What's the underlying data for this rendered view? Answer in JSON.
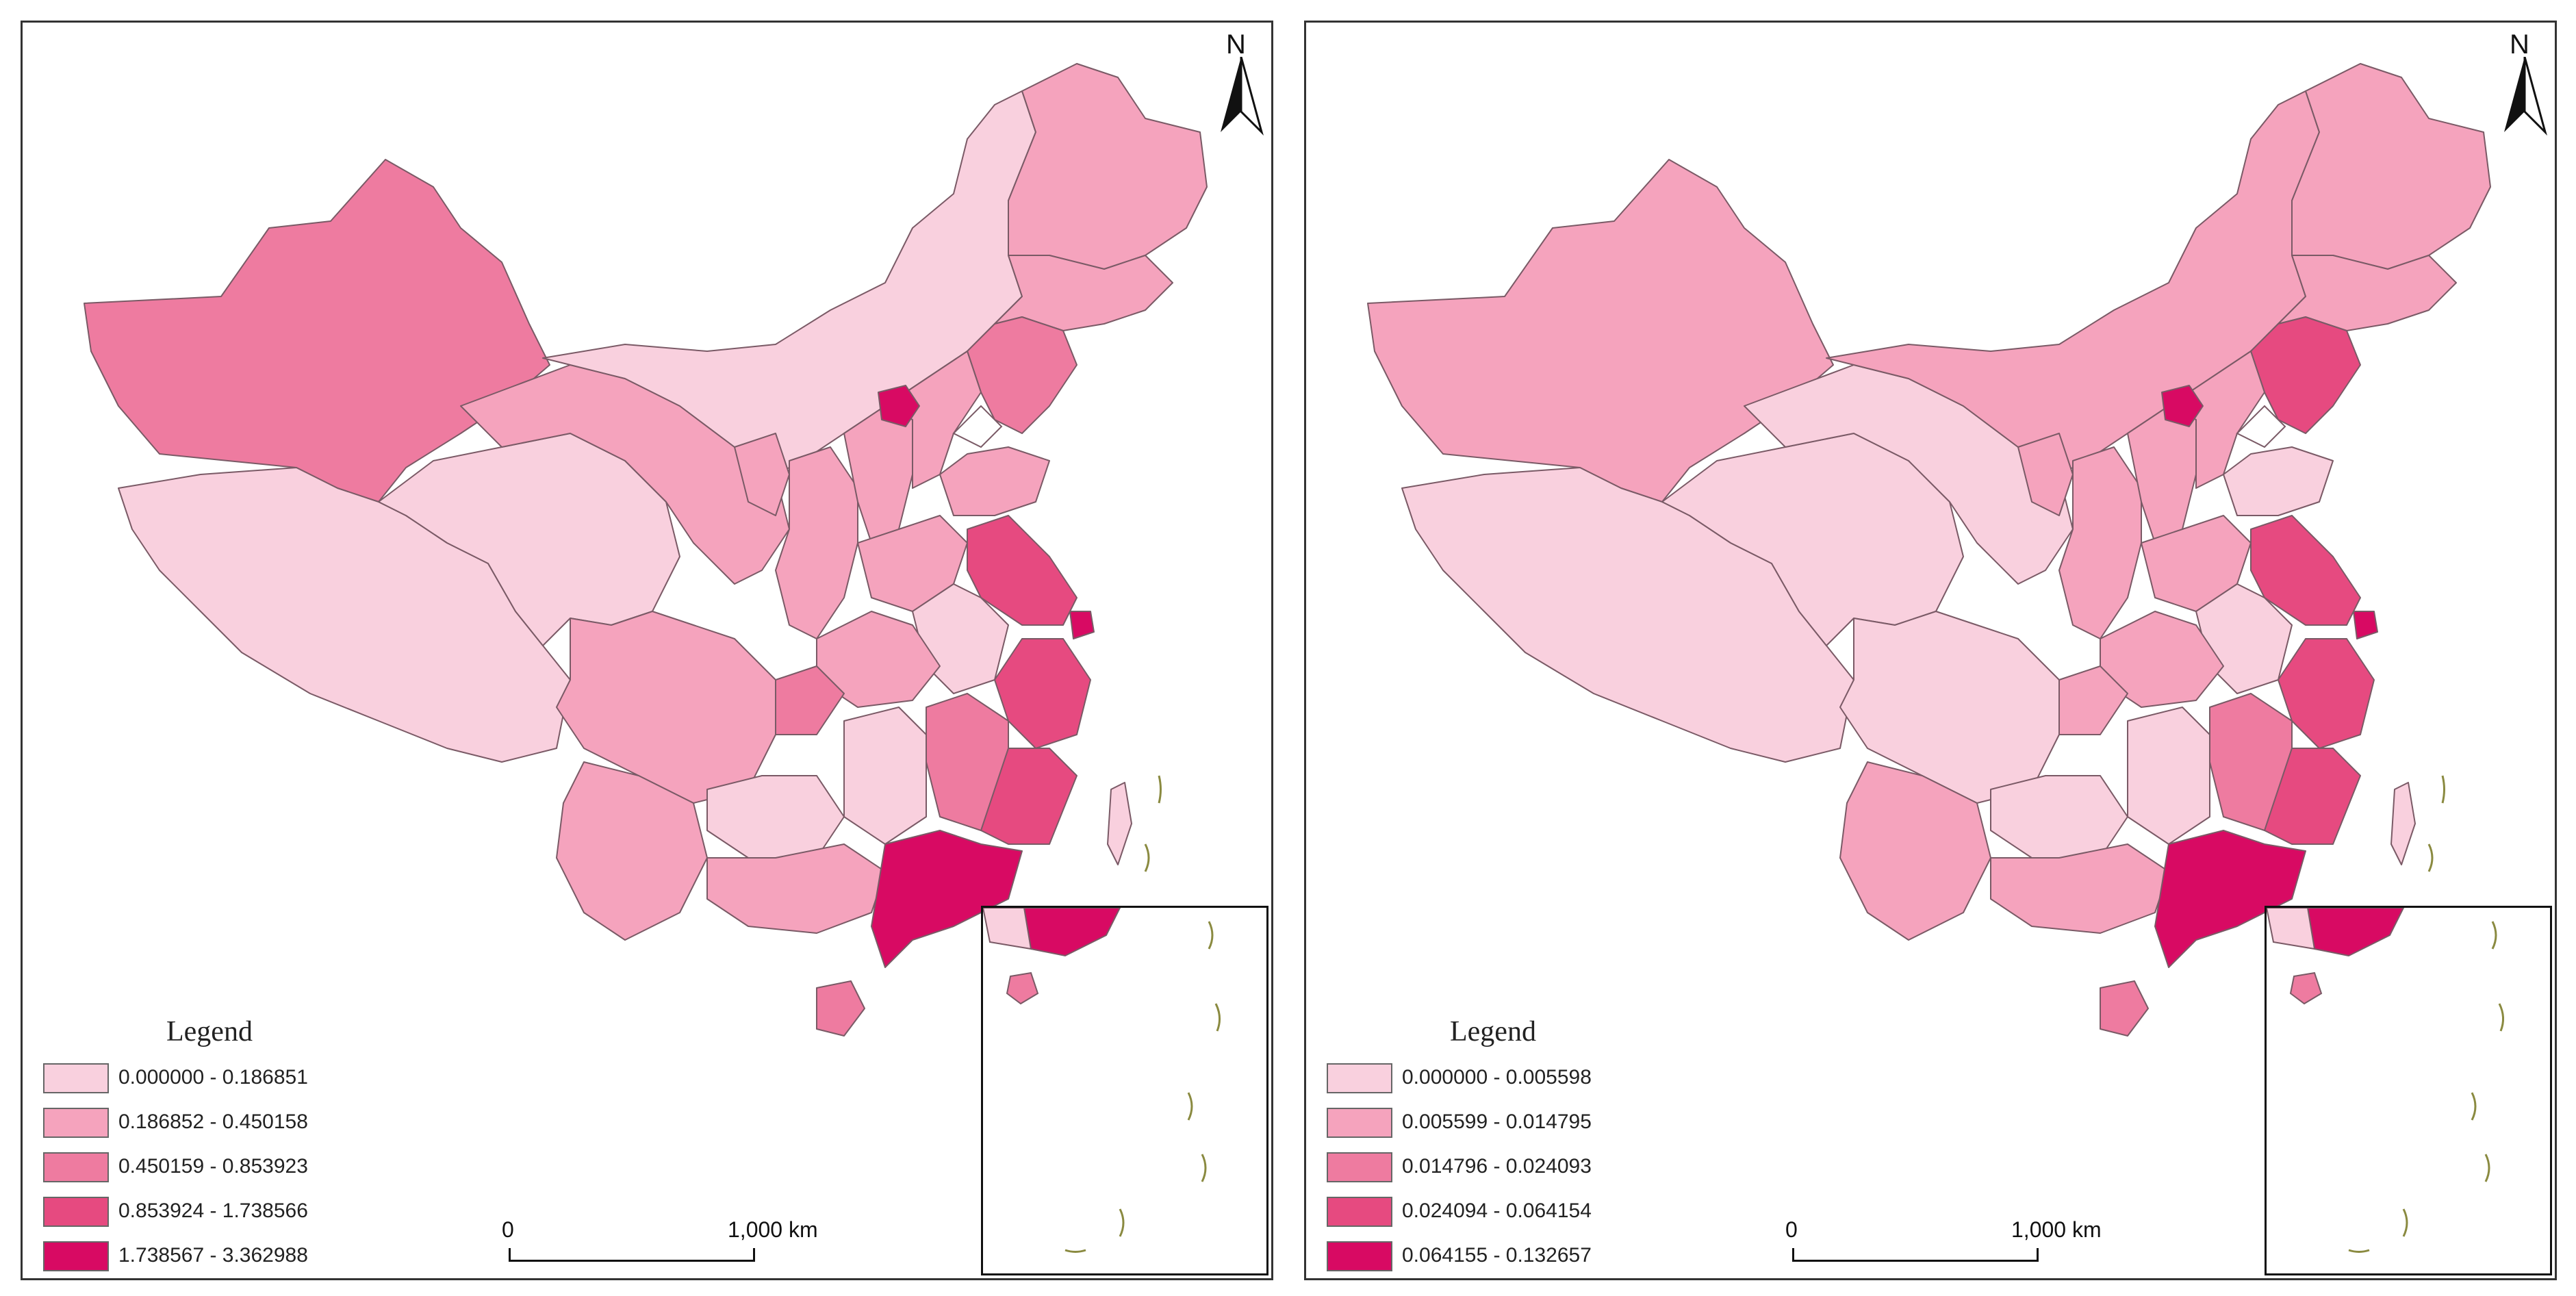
{
  "maps": [
    {
      "legend_title": "Legend",
      "legend": [
        {
          "label": "0.000000 - 0.186851",
          "color": "#f9d0de"
        },
        {
          "label": "0.186852 - 0.450158",
          "color": "#f5a3bd"
        },
        {
          "label": "0.450159 - 0.853923",
          "color": "#ee7ba0"
        },
        {
          "label": "0.853924 - 1.738566",
          "color": "#e64a80"
        },
        {
          "label": "1.738567 - 3.362988",
          "color": "#d80a63"
        }
      ],
      "north_label": "N",
      "scale": {
        "start": "0",
        "end": "1,000 km"
      }
    },
    {
      "legend_title": "Legend",
      "legend": [
        {
          "label": "0.000000 - 0.005598",
          "color": "#f9d0de"
        },
        {
          "label": "0.005599 - 0.014795",
          "color": "#f5a3bd"
        },
        {
          "label": "0.014796 - 0.024093",
          "color": "#ee7ba0"
        },
        {
          "label": "0.024094 - 0.064154",
          "color": "#e64a80"
        },
        {
          "label": "0.064155 - 0.132657",
          "color": "#d80a63"
        }
      ],
      "north_label": "N",
      "scale": {
        "start": "0",
        "end": "1,000 km"
      }
    }
  ],
  "colors": {
    "class1": "#f9d0de",
    "class2": "#f5a3bd",
    "class3": "#ee7ba0",
    "class4": "#e64a80",
    "class5": "#d80a63",
    "border": "#7a5a66"
  }
}
